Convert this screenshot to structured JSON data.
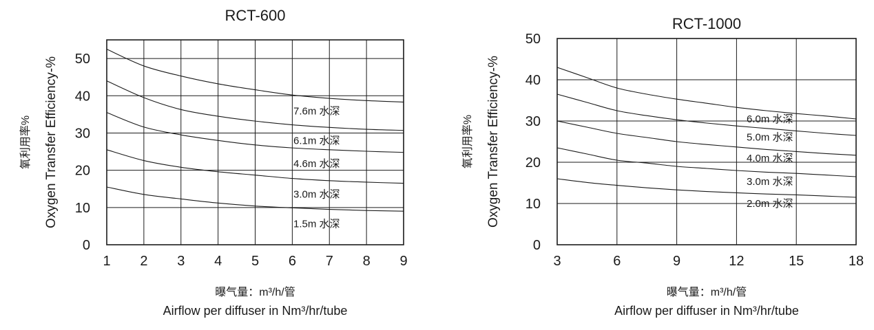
{
  "chart_data": [
    {
      "type": "line",
      "title": "RCT-600",
      "ylabel_en": "Oxygen Transfer Efficiency-%",
      "ylabel_zh": "氧利用率%",
      "xlabel_zh": "曝气量：m³/h/管",
      "xlabel_en": "Airflow per diffuser in Nm³/hr/tube",
      "xlim": [
        1,
        9
      ],
      "ylim": [
        0,
        55
      ],
      "xticks": [
        1,
        2,
        3,
        4,
        5,
        6,
        7,
        8,
        9
      ],
      "yticks": [
        0,
        10,
        20,
        30,
        40,
        50
      ],
      "grid": true,
      "series": [
        {
          "name": "7.6m 水深",
          "x": [
            1,
            2,
            3,
            4,
            5,
            6,
            7,
            8,
            9
          ],
          "y": [
            52.5,
            48,
            45.3,
            43.2,
            41.6,
            40.2,
            39.3,
            38.7,
            38.3
          ]
        },
        {
          "name": "6.1m 水深",
          "x": [
            1,
            2,
            3,
            4,
            5,
            6,
            7,
            8,
            9
          ],
          "y": [
            44,
            39.5,
            36.3,
            34.5,
            33.2,
            32.2,
            31.5,
            31,
            30.7
          ]
        },
        {
          "name": "4.6m 水深",
          "x": [
            1,
            2,
            3,
            4,
            5,
            6,
            7,
            8,
            9
          ],
          "y": [
            35.5,
            31.6,
            29.5,
            28,
            26.8,
            26,
            25.5,
            25.1,
            24.8
          ]
        },
        {
          "name": "3.0m 水深",
          "x": [
            1,
            2,
            3,
            4,
            5,
            6,
            7,
            8,
            9
          ],
          "y": [
            25.5,
            22.6,
            20.8,
            19.6,
            18.7,
            17.8,
            17.2,
            16.8,
            16.5
          ]
        },
        {
          "name": "1.5m 水深",
          "x": [
            1,
            2,
            3,
            4,
            5,
            6,
            7,
            8,
            9
          ],
          "y": [
            15.5,
            13.5,
            12.3,
            11.2,
            10.4,
            9.9,
            9.5,
            9.2,
            9.0
          ]
        }
      ]
    },
    {
      "type": "line",
      "title": "RCT-1000",
      "ylabel_en": "Oxygen Transfer Efficiency-%",
      "ylabel_zh": "氧利用率%",
      "xlabel_zh": "曝气量：m³/h/管",
      "xlabel_en": "Airflow per diffuser in Nm³/hr/tube",
      "xlim": [
        3,
        18
      ],
      "ylim": [
        0,
        50
      ],
      "xticks": [
        3,
        6,
        9,
        12,
        15,
        18
      ],
      "yticks": [
        0,
        10,
        20,
        30,
        40,
        50
      ],
      "grid": true,
      "series": [
        {
          "name": "6.0m 水深",
          "x": [
            3,
            4.5,
            6,
            7.5,
            9,
            10.5,
            12,
            13.5,
            15,
            16.5,
            18
          ],
          "y": [
            43,
            40.5,
            38,
            36.5,
            35.3,
            34.3,
            33.3,
            32.5,
            31.8,
            31.2,
            30.5
          ]
        },
        {
          "name": "5.0m 水深",
          "x": [
            3,
            4.5,
            6,
            7.5,
            9,
            10.5,
            12,
            13.5,
            15,
            16.5,
            18
          ],
          "y": [
            36.5,
            34.5,
            32.5,
            31.3,
            30.3,
            29.5,
            28.8,
            28.2,
            27.6,
            27,
            26.5
          ]
        },
        {
          "name": "4.0m 水深",
          "x": [
            3,
            4.5,
            6,
            7.5,
            9,
            10.5,
            12,
            13.5,
            15,
            16.5,
            18
          ],
          "y": [
            30,
            28.5,
            27,
            26,
            25,
            24.3,
            23.7,
            23.1,
            22.6,
            22.1,
            21.7
          ]
        },
        {
          "name": "3.0m 水深",
          "x": [
            3,
            4.5,
            6,
            7.5,
            9,
            10.5,
            12,
            13.5,
            15,
            16.5,
            18
          ],
          "y": [
            23.5,
            22,
            20.5,
            19.8,
            19,
            18.5,
            18,
            17.6,
            17.3,
            16.9,
            16.5
          ]
        },
        {
          "name": "2.0m 水深",
          "x": [
            3,
            4.5,
            6,
            7.5,
            9,
            10.5,
            12,
            13.5,
            15,
            16.5,
            18
          ],
          "y": [
            16,
            15.1,
            14.4,
            13.8,
            13.3,
            12.9,
            12.6,
            12.3,
            12.1,
            11.8,
            11.5
          ]
        }
      ]
    }
  ]
}
